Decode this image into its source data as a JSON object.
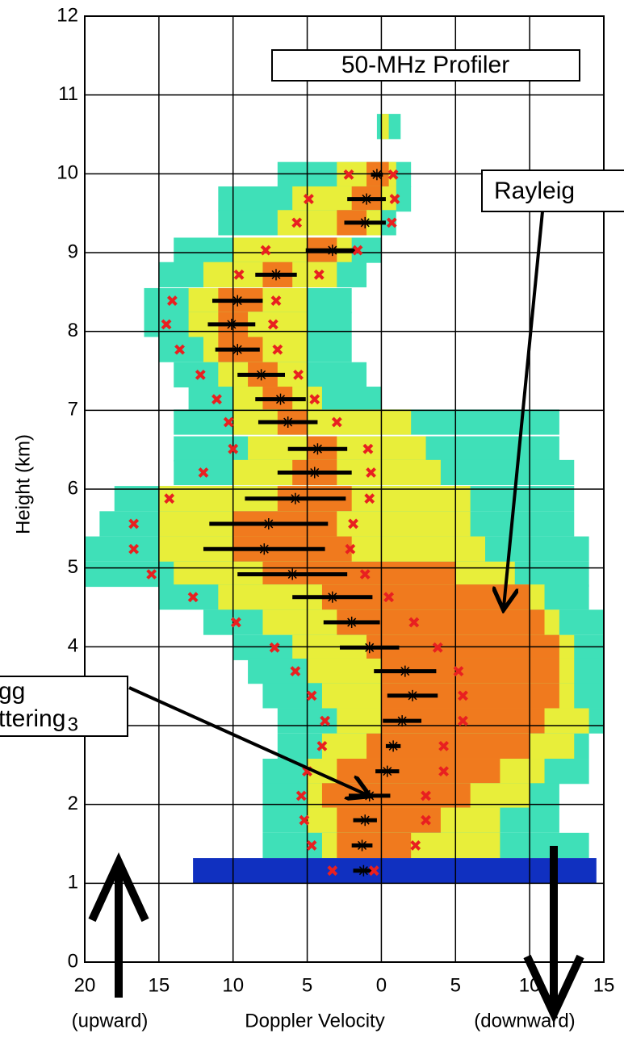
{
  "chart_data": {
    "type": "spectrogram",
    "y_label": "Height (km)",
    "x_label": "Doppler Velocity",
    "x_label_left": "(upward)",
    "x_label_right": "(downward)",
    "xlim": [
      -20,
      15
    ],
    "ylim": [
      0,
      12
    ],
    "xticks": [
      {
        "value": -20,
        "label": "20"
      },
      {
        "value": -15,
        "label": "15"
      },
      {
        "value": -10,
        "label": "10"
      },
      {
        "value": -5,
        "label": "5"
      },
      0,
      5,
      10,
      15
    ],
    "yticks": [
      0,
      1,
      2,
      3,
      4,
      5,
      6,
      7,
      8,
      9,
      10,
      11,
      12
    ],
    "grid": true,
    "colors": {
      "outer": "#3fe0b8",
      "mid": "#e8ee3a",
      "core": "#f07a1e",
      "low": "#1030c0",
      "mean": "#000000",
      "edge": "#e82020"
    },
    "spectra": [
      {
        "height": 10.6,
        "outer": [
          -0.3,
          1.3
        ],
        "mid": [
          0,
          0.5
        ],
        "core": null
      },
      {
        "height": 9.99,
        "outer": [
          -7,
          2
        ],
        "mid": [
          -3,
          1
        ],
        "core": [
          -1,
          0.5
        ]
      },
      {
        "height": 9.68,
        "outer": [
          -11,
          2
        ],
        "mid": [
          -6,
          1
        ],
        "core": [
          -2,
          0
        ]
      },
      {
        "height": 9.38,
        "outer": [
          -11,
          1
        ],
        "mid": [
          -7,
          0
        ],
        "core": [
          -3,
          -1
        ]
      },
      {
        "height": 9.03,
        "outer": [
          -14,
          0
        ],
        "mid": [
          -10,
          -2
        ],
        "core": [
          -5,
          -3
        ]
      },
      {
        "height": 8.72,
        "outer": [
          -15,
          -1
        ],
        "mid": [
          -12,
          -3
        ],
        "core": [
          -8,
          -6
        ]
      },
      {
        "height": 8.39,
        "outer": [
          -16,
          -2
        ],
        "mid": [
          -13,
          -5
        ],
        "core": [
          -11,
          -8
        ]
      },
      {
        "height": 8.09,
        "outer": [
          -16,
          -2
        ],
        "mid": [
          -13,
          -5
        ],
        "core": [
          -11,
          -9
        ]
      },
      {
        "height": 7.77,
        "outer": [
          -15,
          -2
        ],
        "mid": [
          -12,
          -5
        ],
        "core": [
          -11,
          -8
        ]
      },
      {
        "height": 7.45,
        "outer": [
          -14,
          -1
        ],
        "mid": [
          -11,
          -5
        ],
        "core": [
          -9,
          -7
        ]
      },
      {
        "height": 7.14,
        "outer": [
          -13,
          0
        ],
        "mid": [
          -10,
          -4
        ],
        "core": [
          -8,
          -6
        ]
      },
      {
        "height": 6.85,
        "outer": [
          -14,
          12
        ],
        "mid": [
          -10,
          2
        ],
        "core": [
          -7,
          -5
        ]
      },
      {
        "height": 6.51,
        "outer": [
          -14,
          12
        ],
        "mid": [
          -9,
          3
        ],
        "core": [
          -5,
          -3
        ]
      },
      {
        "height": 6.21,
        "outer": [
          -14,
          13
        ],
        "mid": [
          -10,
          4
        ],
        "core": [
          -6,
          -3
        ]
      },
      {
        "height": 5.88,
        "outer": [
          -18,
          13
        ],
        "mid": [
          -15,
          6
        ],
        "core": [
          -7,
          -2
        ]
      },
      {
        "height": 5.56,
        "outer": [
          -19,
          13
        ],
        "mid": [
          -15,
          6
        ],
        "core": [
          -10,
          -3
        ]
      },
      {
        "height": 5.24,
        "outer": [
          -20,
          14
        ],
        "mid": [
          -15,
          7
        ],
        "core": [
          -10,
          -2
        ]
      },
      {
        "height": 4.92,
        "outer": [
          -20,
          14
        ],
        "mid": [
          -14,
          9
        ],
        "core": [
          -8,
          5
        ]
      },
      {
        "height": 4.63,
        "outer": [
          -15,
          14
        ],
        "mid": [
          -11,
          11
        ],
        "core": [
          -4,
          10
        ]
      },
      {
        "height": 4.31,
        "outer": [
          -12,
          15
        ],
        "mid": [
          -8,
          12
        ],
        "core": [
          -3,
          11
        ]
      },
      {
        "height": 3.99,
        "outer": [
          -10,
          15
        ],
        "mid": [
          -6,
          13
        ],
        "core": [
          -1,
          12
        ]
      },
      {
        "height": 3.69,
        "outer": [
          -9,
          15
        ],
        "mid": [
          -5,
          13
        ],
        "core": [
          0,
          12
        ]
      },
      {
        "height": 3.38,
        "outer": [
          -8,
          15
        ],
        "mid": [
          -4,
          13
        ],
        "core": [
          0,
          12
        ]
      },
      {
        "height": 3.06,
        "outer": [
          -7,
          15
        ],
        "mid": [
          -3,
          14
        ],
        "core": [
          0,
          11
        ]
      },
      {
        "height": 2.74,
        "outer": [
          -7,
          14
        ],
        "mid": [
          -4,
          13
        ],
        "core": [
          -1,
          10
        ]
      },
      {
        "height": 2.42,
        "outer": [
          -8,
          14
        ],
        "mid": [
          -5,
          11
        ],
        "core": [
          -3,
          8
        ]
      },
      {
        "height": 2.11,
        "outer": [
          -8,
          12
        ],
        "mid": [
          -5,
          10
        ],
        "core": [
          -4,
          6
        ]
      },
      {
        "height": 1.8,
        "outer": [
          -8,
          12
        ],
        "mid": [
          -5,
          8
        ],
        "core": [
          -3,
          4
        ]
      },
      {
        "height": 1.48,
        "outer": [
          -8,
          14
        ],
        "mid": [
          -4,
          8
        ],
        "core": [
          -3,
          2
        ]
      }
    ],
    "low_band": {
      "height": 1.16,
      "range": [
        -12.7,
        14.5
      ]
    },
    "heights": [
      9.99,
      9.68,
      9.38,
      9.03,
      8.72,
      8.39,
      8.09,
      7.77,
      7.45,
      7.14,
      6.85,
      6.51,
      6.21,
      5.88,
      5.56,
      5.24,
      4.92,
      4.63,
      4.31,
      3.99,
      3.69,
      3.38,
      3.06,
      2.74,
      2.42,
      2.11,
      1.8,
      1.48,
      1.16
    ],
    "mean_velocity": [
      -0.3,
      -1.0,
      -1.1,
      -3.3,
      -7.1,
      -9.7,
      -10.1,
      -9.7,
      -8.1,
      -6.8,
      -6.3,
      -4.3,
      -4.5,
      -5.8,
      -7.6,
      -7.9,
      -6.0,
      -3.3,
      -2.0,
      -0.8,
      1.6,
      2.1,
      1.4,
      0.8,
      0.4,
      -0.8,
      -1.1,
      -1.3,
      -1.2
    ],
    "spread": [
      0.4,
      1.3,
      1.4,
      1.8,
      1.4,
      1.7,
      1.6,
      1.5,
      1.6,
      1.7,
      2.0,
      2.0,
      2.5,
      3.4,
      4.0,
      4.1,
      3.7,
      2.7,
      1.9,
      2.0,
      2.1,
      1.7,
      1.3,
      0.5,
      0.8,
      1.4,
      0.8,
      0.7,
      0.7
    ],
    "edge_left": [
      -2.2,
      -4.9,
      -5.7,
      -7.8,
      -9.6,
      -14.1,
      -14.5,
      -13.6,
      -12.2,
      -11.1,
      -10.3,
      -10.0,
      -12.0,
      -14.3,
      -16.7,
      -16.7,
      -15.5,
      -12.7,
      -9.8,
      -7.2,
      -5.8,
      -4.7,
      -3.8,
      -4.0,
      -5.0,
      -5.4,
      -5.2,
      -4.7,
      -3.3
    ],
    "edge_right": [
      0.8,
      0.9,
      0.7,
      -1.6,
      -4.2,
      -7.1,
      -7.3,
      -7.0,
      -5.6,
      -4.5,
      -3.0,
      -0.9,
      -0.7,
      -0.8,
      -1.9,
      -2.1,
      -1.1,
      0.5,
      2.2,
      3.8,
      5.2,
      5.5,
      5.5,
      4.2,
      4.2,
      3.0,
      3.0,
      2.3,
      -0.5
    ],
    "annotations": {
      "profiler": "50-MHz Profiler",
      "rayleigh": "Rayleig",
      "bragg_1": "gg",
      "bragg_2": "ttering"
    }
  }
}
